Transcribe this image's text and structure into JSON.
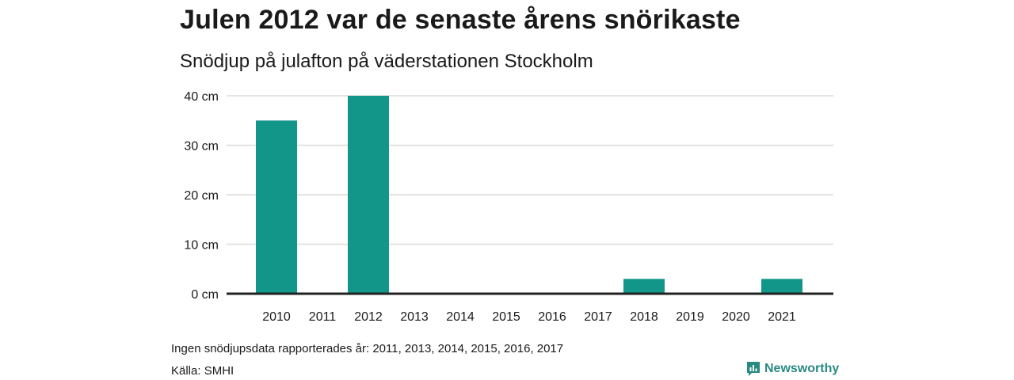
{
  "title": "Julen 2012 var de senaste årens snörikaste",
  "subtitle": "Snödjup på julafton på väderstationen Stockholm",
  "note": "Ingen snödjupsdata rapporterades år: 2011, 2013, 2014, 2015, 2016, 2017",
  "source": "Källa: SMHI",
  "brand": {
    "name": "Newsworthy",
    "icon": "newsworthy-logo-icon",
    "color": "#2a8a82"
  },
  "colors": {
    "bar": "#13968a",
    "grid": "#dcdcdc",
    "baseline": "#222222"
  },
  "chart_data": {
    "type": "bar",
    "categories": [
      "2010",
      "2011",
      "2012",
      "2013",
      "2014",
      "2015",
      "2016",
      "2017",
      "2018",
      "2019",
      "2020",
      "2021"
    ],
    "values": [
      35,
      null,
      40,
      null,
      null,
      null,
      null,
      null,
      3,
      null,
      null,
      3
    ],
    "ylim": [
      0,
      40
    ],
    "yticks": [
      0,
      10,
      20,
      30,
      40
    ],
    "ytick_labels": [
      "0 cm",
      "10 cm",
      "20 cm",
      "30 cm",
      "40 cm"
    ],
    "grid": true,
    "xlabel": "",
    "ylabel": ""
  }
}
